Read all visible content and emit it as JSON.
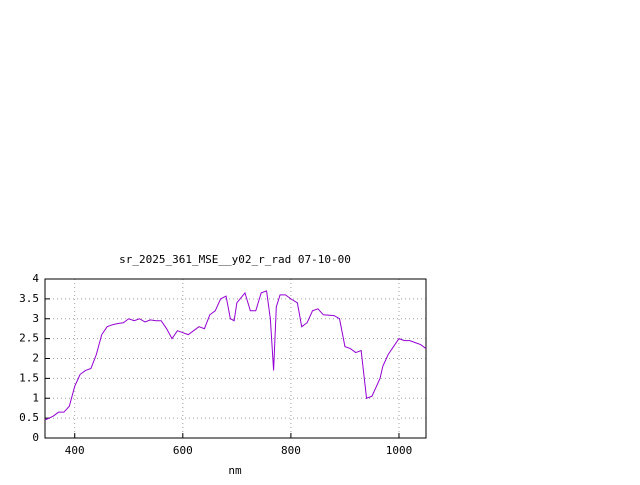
{
  "chart_data": {
    "type": "line",
    "title": "sr_2025_361_MSE__y02_r_rad 07-10-00",
    "x_label": "nm",
    "xlim": [
      345,
      1050
    ],
    "ylim": [
      0,
      4
    ],
    "xticks": [
      400,
      600,
      800,
      1000
    ],
    "yticks": [
      0,
      0.5,
      1,
      1.5,
      2,
      2.5,
      3,
      3.5,
      4
    ],
    "grid": true,
    "series": [
      {
        "color": "#9400d3",
        "x": [
          345,
          360,
          370,
          380,
          390,
          400,
          410,
          420,
          430,
          440,
          450,
          460,
          470,
          480,
          490,
          500,
          510,
          520,
          530,
          540,
          550,
          560,
          570,
          580,
          590,
          600,
          610,
          620,
          630,
          640,
          650,
          660,
          670,
          680,
          688,
          695,
          700,
          715,
          725,
          735,
          745,
          755,
          762,
          768,
          773,
          780,
          790,
          800,
          812,
          820,
          830,
          840,
          850,
          860,
          880,
          890,
          900,
          910,
          920,
          930,
          940,
          950,
          965,
          970,
          980,
          990,
          1000,
          1010,
          1020,
          1030,
          1040,
          1050
        ],
        "values": [
          0.45,
          0.55,
          0.65,
          0.65,
          0.8,
          1.3,
          1.6,
          1.7,
          1.75,
          2.1,
          2.6,
          2.8,
          2.85,
          2.88,
          2.9,
          3.0,
          2.95,
          3.0,
          2.92,
          2.97,
          2.95,
          2.95,
          2.75,
          2.5,
          2.7,
          2.65,
          2.6,
          2.7,
          2.8,
          2.75,
          3.1,
          3.2,
          3.5,
          3.57,
          3.0,
          2.95,
          3.4,
          3.65,
          3.2,
          3.2,
          3.65,
          3.7,
          3.0,
          1.7,
          3.3,
          3.6,
          3.6,
          3.5,
          3.4,
          2.8,
          2.9,
          3.2,
          3.25,
          3.1,
          3.08,
          3.0,
          2.3,
          2.25,
          2.15,
          2.2,
          1.0,
          1.05,
          1.5,
          1.8,
          2.1,
          2.3,
          2.5,
          2.45,
          2.45,
          2.4,
          2.35,
          2.25
        ]
      }
    ]
  }
}
